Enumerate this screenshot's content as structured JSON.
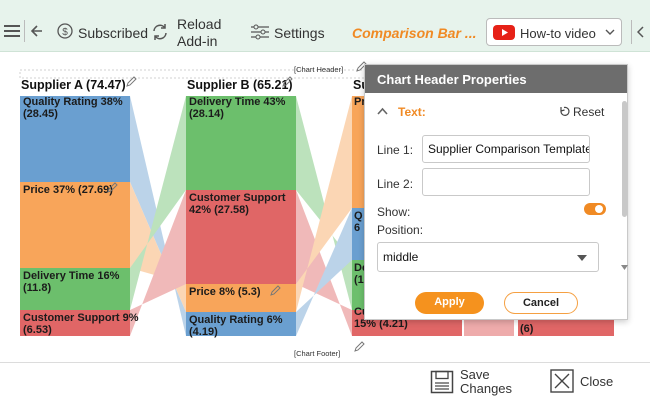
{
  "toolbar": {
    "subscribed_label": "Subscribed",
    "reload_label_line1": "Reload",
    "reload_label_line2": "Add-in",
    "settings_label": "Settings",
    "chart_name": "Comparison Bar ...",
    "howto_label": "How-to video",
    "accent_color": "#f08a24"
  },
  "chart": {
    "header_tag": "[Chart Header]",
    "footer_tag": "[Chart Footer]",
    "suppliers": [
      {
        "title": "Supplier A (74.47)",
        "segments": [
          {
            "label_line1": "Quality Rating 38%",
            "label_line2": "(28.45)",
            "color": "#6a9fd0"
          },
          {
            "label_line1": "Price 37% (27.69)",
            "label_line2": "",
            "color": "#f8a55a"
          },
          {
            "label_line1": "Delivery Time 16%",
            "label_line2": "(11.8)",
            "color": "#6cbf6c"
          },
          {
            "label_line1": "Customer Support 9%",
            "label_line2": "(6.53)",
            "color": "#e06666"
          }
        ]
      },
      {
        "title": "Supplier B (65.21)",
        "segments": [
          {
            "label_line1": "Delivery Time 43%",
            "label_line2": "(28.14)",
            "color": "#6cbf6c"
          },
          {
            "label_line1": "Customer Support",
            "label_line2": "42% (27.58)",
            "color": "#e06666"
          },
          {
            "label_line1": "Price 8% (5.3)",
            "label_line2": "",
            "color": "#f8a55a"
          },
          {
            "label_line1": "Quality Rating 6%",
            "label_line2": "(4.19)",
            "color": "#6a9fd0"
          }
        ]
      },
      {
        "title": "Su",
        "segments": [
          {
            "label_line1": "Pr",
            "label_line2": "",
            "color": "#f8a55a"
          },
          {
            "label_line1": "Q",
            "label_line2": "6",
            "color": "#6a9fd0"
          },
          {
            "label_line1": "De",
            "label_line2": "(1",
            "color": "#6cbf6c"
          },
          {
            "label_line1": "Cu",
            "label_line2": "15% (4.21)",
            "color": "#e06666"
          }
        ]
      }
    ],
    "partial_cell_text": "(6)"
  },
  "panel": {
    "title": "Chart Header Properties",
    "section_label": "Text:",
    "reset_label": "Reset",
    "line1_label": "Line 1:",
    "line1_value": "Supplier Comparison  Template",
    "line2_label": "Line 2:",
    "line2_value": "",
    "show_label": "Show:",
    "show_enabled": true,
    "position_label": "Position:",
    "position_value": "middle",
    "apply_label": "Apply",
    "cancel_label": "Cancel"
  },
  "footer": {
    "save_line1": "Save",
    "save_line2": "Changes",
    "close_label": "Close"
  }
}
